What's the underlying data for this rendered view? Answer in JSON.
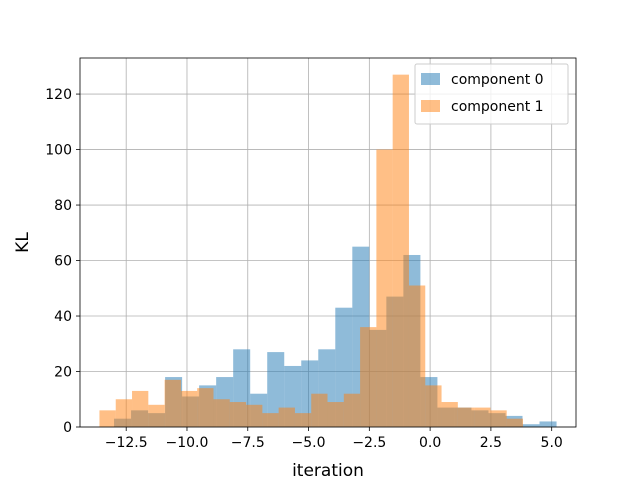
{
  "chart_data": {
    "type": "bar",
    "xlabel": "iteration",
    "ylabel": "KL",
    "xlim": [
      -14.4,
      6.0
    ],
    "ylim": [
      0,
      133
    ],
    "xticks": [
      -12.5,
      -10.0,
      -7.5,
      -5.0,
      -2.5,
      0.0,
      2.5,
      5.0
    ],
    "xtick_labels": [
      "−12.5",
      "−10.0",
      "−7.5",
      "−5.0",
      "−2.5",
      "0.0",
      "2.5",
      "5.0"
    ],
    "yticks": [
      0,
      20,
      40,
      60,
      80,
      100,
      120
    ],
    "ytick_labels": [
      "0",
      "20",
      "40",
      "60",
      "80",
      "100",
      "120"
    ],
    "grid": true,
    "legend_position": "top-right",
    "series": [
      {
        "name": "component 0",
        "color": "#1f77b4",
        "alpha": 0.5,
        "bin_start": -13.0,
        "bin_width": 0.7,
        "values": [
          3,
          6,
          5,
          18,
          11,
          15,
          18,
          28,
          12,
          27,
          22,
          24,
          28,
          43,
          65,
          35,
          47,
          62,
          18,
          7,
          7,
          6,
          5,
          4,
          1,
          2
        ]
      },
      {
        "name": "component 1",
        "color": "#ff7f0e",
        "alpha": 0.5,
        "bin_start": -13.6,
        "bin_width": 0.67,
        "values": [
          6,
          10,
          13,
          8,
          17,
          13,
          14,
          10,
          9,
          8,
          5,
          7,
          5,
          12,
          9,
          12,
          36,
          100,
          127,
          51,
          15,
          9,
          7,
          7,
          6,
          3
        ]
      }
    ]
  }
}
